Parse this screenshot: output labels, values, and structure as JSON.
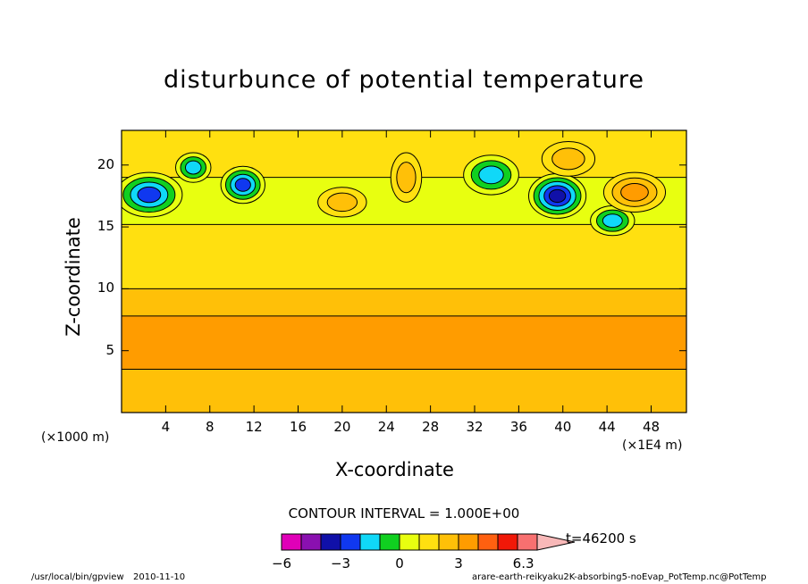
{
  "chart_data": {
    "type": "heatmap",
    "title": "disturbunce of potential temperature",
    "xlabel": "X-coordinate",
    "ylabel": "Z-coordinate",
    "x_unit_left": "(×1000 m)",
    "x_unit_right": "(×1E4 m)",
    "xlim": [
      0,
      51.2
    ],
    "ylim": [
      0,
      22.8
    ],
    "x_ticks": [
      "4",
      "8",
      "12",
      "16",
      "20",
      "24",
      "28",
      "32",
      "36",
      "40",
      "44",
      "48"
    ],
    "y_ticks": [
      "5",
      "10",
      "15",
      "20"
    ],
    "contour_interval_text": "CONTOUR INTERVAL = 1.000E+00",
    "time_label": "t=46200 s",
    "colorbar": {
      "labels": [
        "−6",
        "−3",
        "0",
        "3",
        "6.3"
      ],
      "levels": [
        -6,
        -5,
        -4,
        -3,
        -2,
        -1,
        0,
        1,
        2,
        3,
        4,
        5,
        6
      ],
      "colors": [
        "#e000b8",
        "#8a10b0",
        "#1010a8",
        "#1038f0",
        "#10d8f8",
        "#10d020",
        "#e8ff10",
        "#ffe010",
        "#ffc008",
        "#ff9c00",
        "#ff6010",
        "#f01808",
        "#f87070",
        "#f8b8b8"
      ]
    },
    "bands": [
      {
        "z_from": 0.0,
        "z_to": 3.5,
        "value": 1.5
      },
      {
        "z_from": 3.5,
        "z_to": 7.8,
        "value": 2.5
      },
      {
        "z_from": 7.8,
        "z_to": 10.0,
        "value": 1.5
      },
      {
        "z_from": 10.0,
        "z_to": 15.2,
        "value": 0.5
      },
      {
        "z_from": 15.2,
        "z_to": 19.0,
        "value": -0.5
      },
      {
        "z_from": 19.0,
        "z_to": 22.8,
        "value": 0.5
      }
    ],
    "features": [
      {
        "x": 2.5,
        "z": 17.6,
        "rx": 3.0,
        "rz": 1.8,
        "value": -3.5
      },
      {
        "x": 6.5,
        "z": 19.8,
        "rx": 1.6,
        "rz": 1.2,
        "value": -2.5
      },
      {
        "x": 11.0,
        "z": 18.4,
        "rx": 2.0,
        "rz": 1.5,
        "value": -3.5
      },
      {
        "x": 20.0,
        "z": 17.0,
        "rx": 2.2,
        "rz": 1.2,
        "value": 1.5
      },
      {
        "x": 25.8,
        "z": 19.0,
        "rx": 1.4,
        "rz": 2.0,
        "value": 1.5
      },
      {
        "x": 33.5,
        "z": 19.2,
        "rx": 2.5,
        "rz": 1.6,
        "value": -2.5
      },
      {
        "x": 39.5,
        "z": 17.5,
        "rx": 2.6,
        "rz": 1.8,
        "value": -4.5
      },
      {
        "x": 44.5,
        "z": 15.5,
        "rx": 2.0,
        "rz": 1.2,
        "value": -2.0
      },
      {
        "x": 46.5,
        "z": 17.8,
        "rx": 2.8,
        "rz": 1.6,
        "value": 2.5
      },
      {
        "x": 40.5,
        "z": 20.5,
        "rx": 2.4,
        "rz": 1.4,
        "value": 1.5
      }
    ]
  },
  "footer": {
    "path": "/usr/local/bin/gpview",
    "date": "2010-11-10",
    "file": "arare-earth-reikyaku2K-absorbing5-noEvap_PotTemp.nc@PotTemp"
  }
}
